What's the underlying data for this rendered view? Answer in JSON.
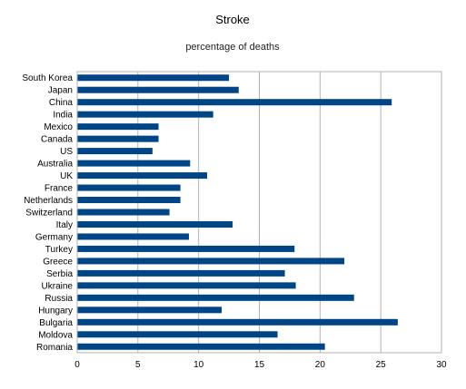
{
  "chart_data": {
    "type": "bar",
    "orientation": "horizontal",
    "title": "Stroke",
    "subtitle": "percentage of deaths",
    "xlabel": "",
    "ylabel": "",
    "xlim": [
      0,
      30
    ],
    "xticks": [
      0,
      5,
      10,
      15,
      20,
      25,
      30
    ],
    "grid": "vertical",
    "legend": "none",
    "bar_color": "#004586",
    "categories": [
      "South Korea",
      "Japan",
      "China",
      "India",
      "Mexico",
      "Canada",
      "US",
      "Australia",
      "UK",
      "France",
      "Netherlands",
      "Switzerland",
      "Italy",
      "Germany",
      "Turkey",
      "Greece",
      "Serbia",
      "Ukraine",
      "Russia",
      "Hungary",
      "Bulgaria",
      "Moldova",
      "Romania"
    ],
    "values": [
      12.5,
      13.3,
      25.9,
      11.2,
      6.7,
      6.7,
      6.2,
      9.3,
      10.7,
      8.5,
      8.5,
      7.6,
      12.8,
      9.2,
      17.9,
      22.0,
      17.1,
      18.0,
      22.8,
      11.9,
      26.4,
      16.5,
      20.4
    ]
  }
}
